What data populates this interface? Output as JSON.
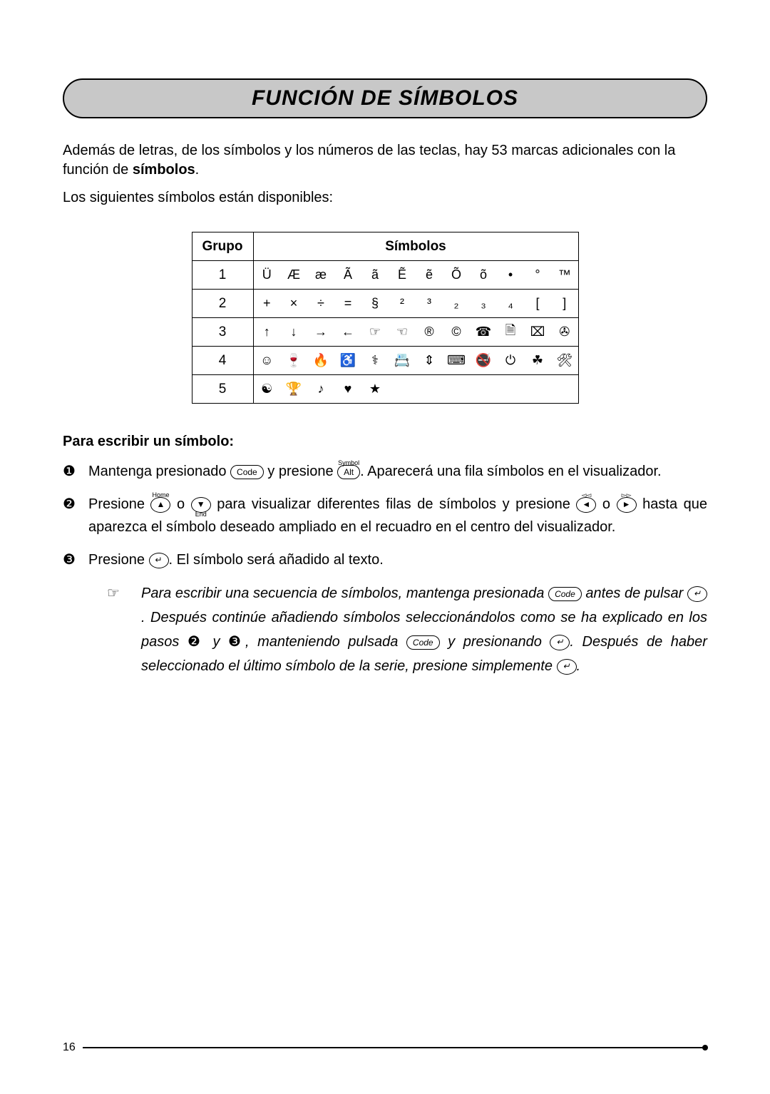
{
  "title": "FUNCIÓN DE SÍMBOLOS",
  "intro_1a": "Además de letras, de los símbolos y los números de las teclas, hay 53 marcas adicionales con la función de ",
  "intro_1b_bold": "símbolos",
  "intro_1c": ".",
  "intro_2": "Los siguientes símbolos están disponibles:",
  "table": {
    "head_group": "Grupo",
    "head_symbols": "Símbolos",
    "rows": [
      {
        "group": "1",
        "cells": [
          "Ü",
          "Æ",
          "æ",
          "Ã",
          "ã",
          "Ẽ",
          "ẽ",
          "Õ",
          "õ",
          "•",
          "°",
          "™"
        ]
      },
      {
        "group": "2",
        "cells": [
          "+",
          "×",
          "÷",
          "=",
          "§",
          "²",
          "³",
          "₂",
          "₃",
          "₄",
          "[",
          "]"
        ]
      },
      {
        "group": "3",
        "cells": [
          "↑",
          "↓",
          "→",
          "←",
          "☞",
          "☜",
          "®",
          "©",
          "☎",
          "🗎",
          "⌧",
          "✇"
        ]
      },
      {
        "group": "4",
        "cells": [
          "☺",
          "🍷",
          "🔥",
          "♿",
          "⚕",
          "📇",
          "⇕",
          "⌨",
          "🚭",
          "⏻",
          "☘",
          "🛠"
        ]
      },
      {
        "group": "5",
        "cells": [
          "☯",
          "🏆",
          "♪",
          "♥",
          "★",
          "",
          "",
          "",
          "",
          "",
          "",
          ""
        ]
      }
    ]
  },
  "section_head": "Para escribir un símbolo:",
  "steps": [
    {
      "num": "❶",
      "parts": [
        "Mantenga presionado ",
        {
          "key": "Code"
        },
        " y presione ",
        {
          "key": "Alt",
          "sup": "Symbol"
        },
        ". Aparecerá una fila símbolos en el visualizador."
      ]
    },
    {
      "num": "❷",
      "parts": [
        "Presione ",
        {
          "key": "▲",
          "sup": "Home",
          "round": true
        },
        " o ",
        {
          "key": "▼",
          "sub": "End",
          "round": true
        },
        " para visualizar diferentes filas de símbolos y presione ",
        {
          "key": "◄",
          "sup": "◅◅",
          "round": true
        },
        " o ",
        {
          "key": "►",
          "sup": "▻▻",
          "round": true
        },
        " hasta que aparezca el símbolo deseado ampliado en el recuadro en el centro del visualizador."
      ]
    },
    {
      "num": "❸",
      "parts": [
        "Presione ",
        {
          "key": "↵",
          "round": true
        },
        ". El símbolo será añadido al texto."
      ]
    }
  ],
  "note": {
    "hand": "☞",
    "parts": [
      "Para escribir una secuencia de símbolos, mantenga presionada ",
      {
        "key": "Code"
      },
      " antes de pulsar ",
      {
        "key": "↵",
        "round": true
      },
      ". Después continúe añadiendo símbolos seleccionándolos como se ha explicado en los pasos ",
      {
        "circ": "❷"
      },
      " y ",
      {
        "circ": "❸"
      },
      ", manteniendo pulsada ",
      {
        "key": "Code"
      },
      " y presionando ",
      {
        "key": "↵",
        "round": true
      },
      ". Después de haber seleccionado el último símbolo de la serie, presione simplemente ",
      {
        "key": "↵",
        "round": true
      },
      "."
    ]
  },
  "page_number": "16"
}
